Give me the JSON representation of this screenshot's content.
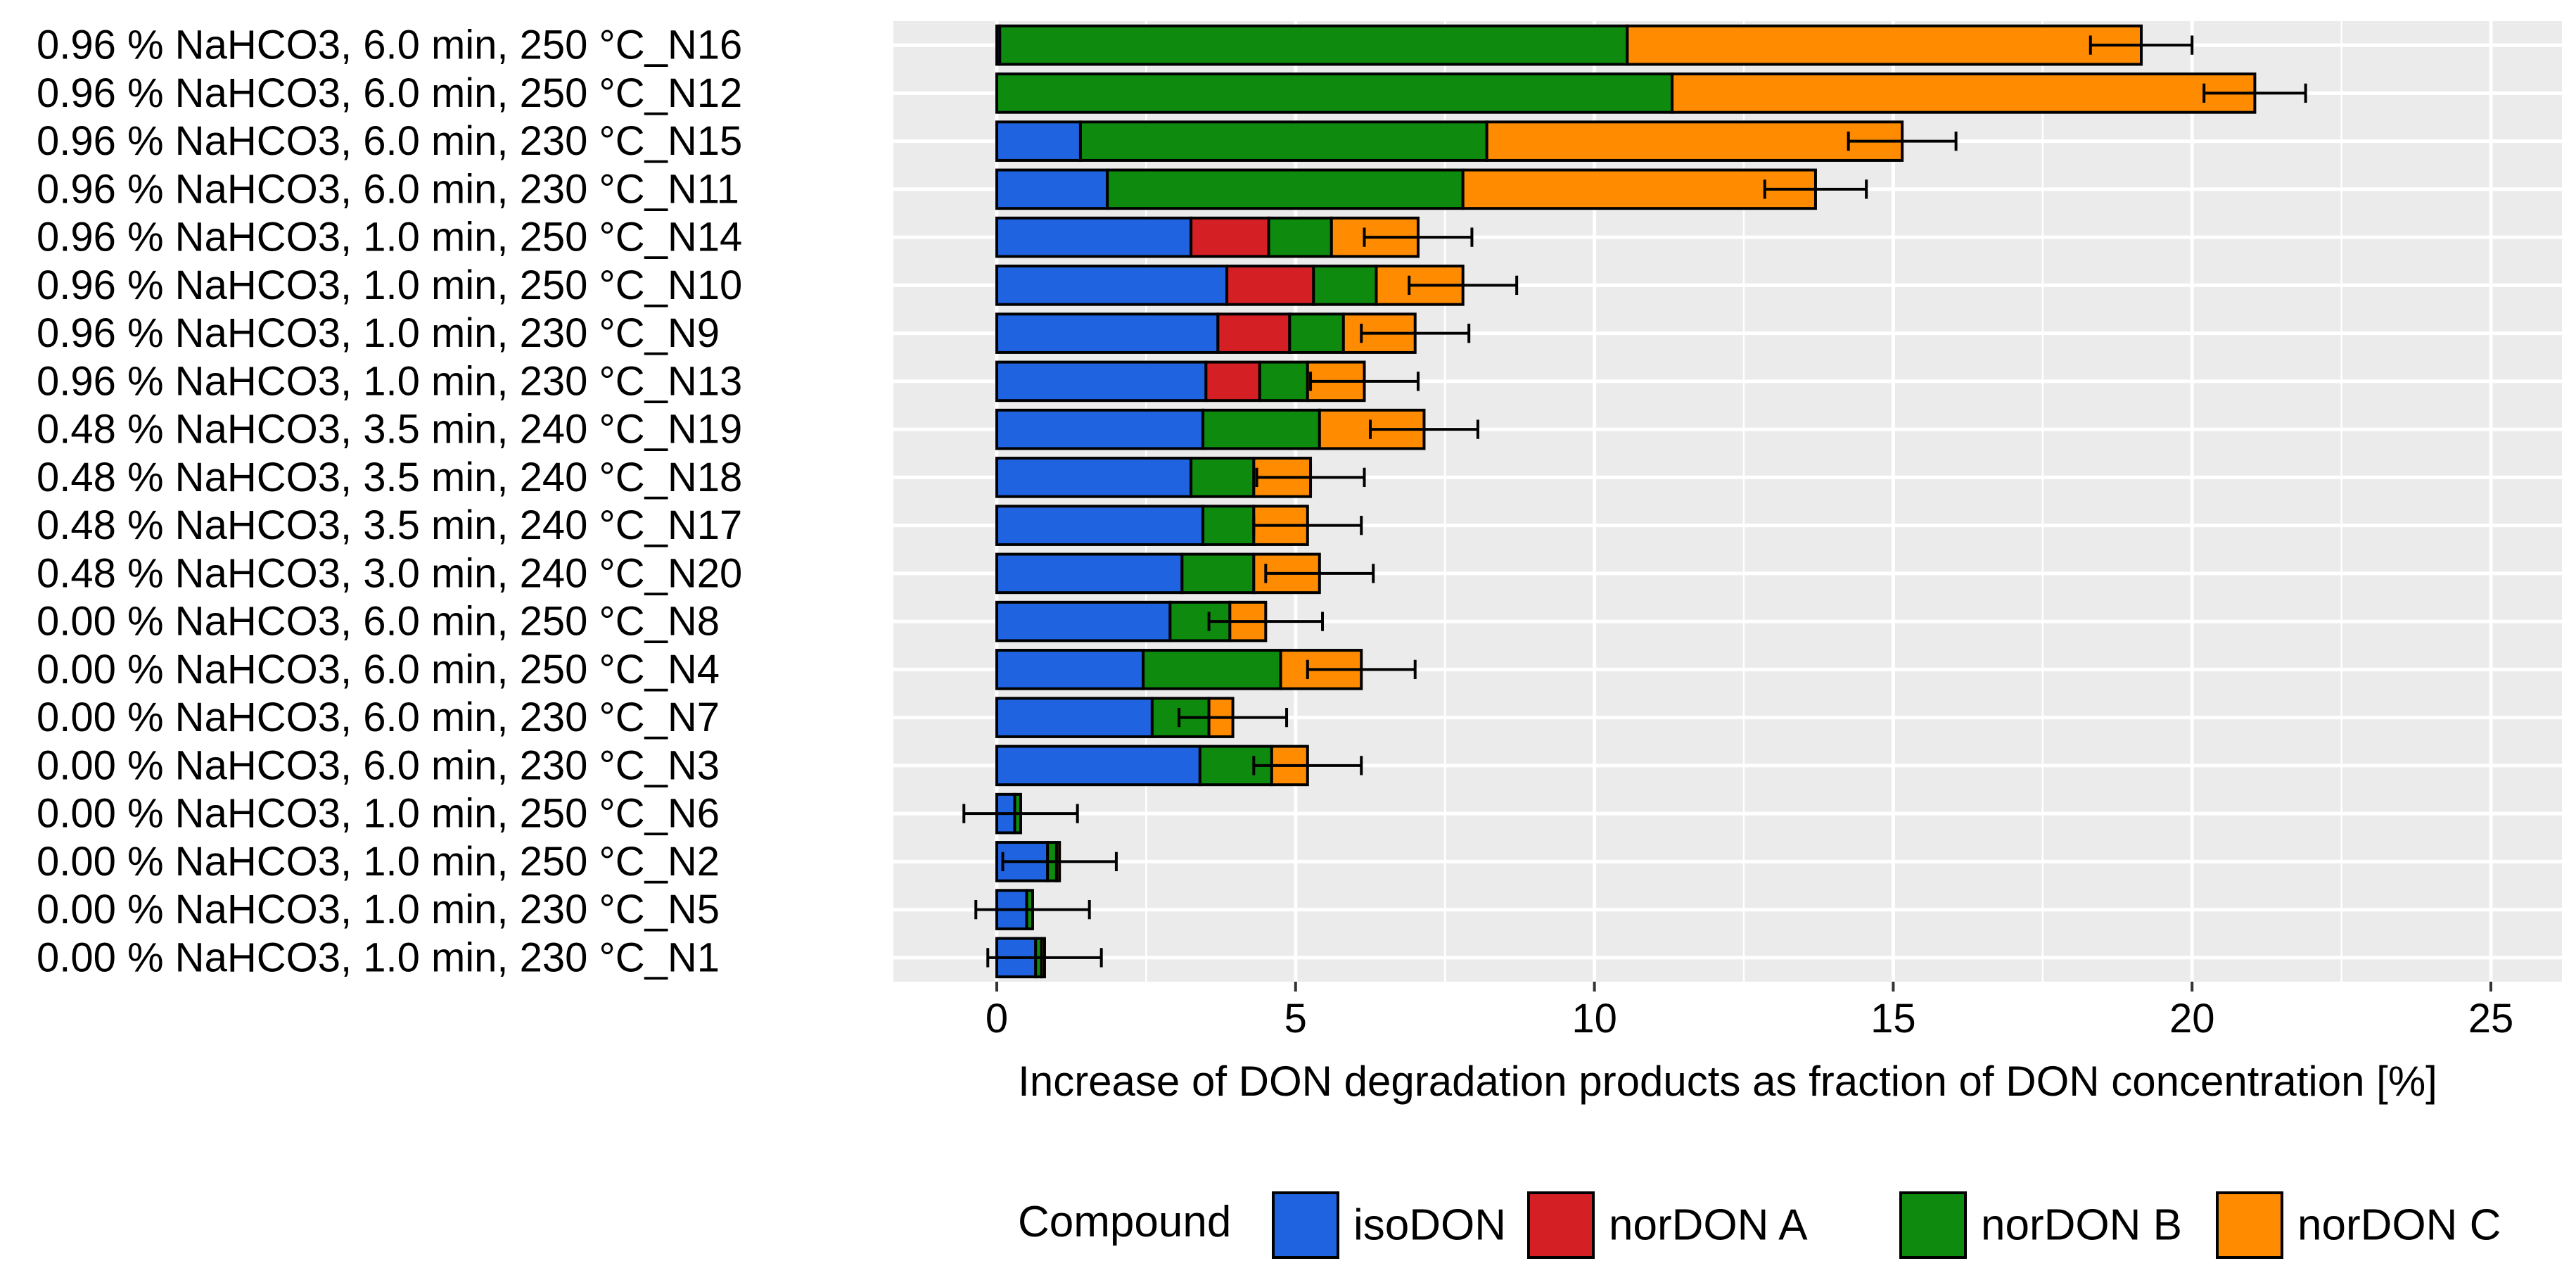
{
  "chart_data": {
    "type": "bar",
    "orientation": "horizontal",
    "stacked": true,
    "title": "",
    "xlabel": "Increase of DON degradation products as fraction of DON concentration [%]",
    "ylabel": "",
    "xlim": [
      -1.75,
      26.3
    ],
    "xticks": [
      0,
      5,
      10,
      15,
      20,
      25
    ],
    "grid": true,
    "legend_position": "bottom",
    "legend_title": "Compound",
    "colors": {
      "isoDON": "#1F63E0",
      "norDON A": "#D41F24",
      "norDON B": "#0E8B0E",
      "norDON C": "#FF8C00",
      "panel_bg": "#EBEBEB",
      "grid": "#FFFFFF"
    },
    "categories": [
      "0.96 % NaHCO3, 6.0 min, 250 °C_N16",
      "0.96 % NaHCO3, 6.0 min, 250 °C_N12",
      "0.96 % NaHCO3, 6.0 min, 230 °C_N15",
      "0.96 % NaHCO3, 6.0 min, 230 °C_N11",
      "0.96 % NaHCO3, 1.0 min, 250 °C_N14",
      "0.96 % NaHCO3, 1.0 min, 250 °C_N10",
      "0.96 % NaHCO3, 1.0 min, 230 °C_N9",
      "0.96 % NaHCO3, 1.0 min, 230 °C_N13",
      "0.48 % NaHCO3, 3.5 min, 240 °C_N19",
      "0.48 % NaHCO3, 3.5 min, 240 °C_N18",
      "0.48 % NaHCO3, 3.5 min, 240 °C_N17",
      "0.48 % NaHCO3, 3.0 min, 240 °C_N20",
      "0.00 % NaHCO3, 6.0 min, 250 °C_N8",
      "0.00 % NaHCO3, 6.0 min, 250 °C_N4",
      "0.00 % NaHCO3, 6.0 min, 230 °C_N7",
      "0.00 % NaHCO3, 6.0 min, 230 °C_N3",
      "0.00 % NaHCO3, 1.0 min, 250 °C_N6",
      "0.00 % NaHCO3, 1.0 min, 250 °C_N2",
      "0.00 % NaHCO3, 1.0 min, 230 °C_N5",
      "0.00 % NaHCO3, 1.0 min, 230 °C_N1"
    ],
    "series": [
      {
        "name": "isoDON",
        "values": [
          0.05,
          0.0,
          1.4,
          1.85,
          3.25,
          3.85,
          3.7,
          3.5,
          3.45,
          3.25,
          3.45,
          3.1,
          2.9,
          2.45,
          2.6,
          3.4,
          0.3,
          0.85,
          0.5,
          0.65
        ]
      },
      {
        "name": "norDON A",
        "values": [
          0.0,
          0.0,
          0.0,
          0.0,
          1.3,
          1.45,
          1.2,
          0.9,
          0.0,
          0.0,
          0.0,
          0.0,
          0.0,
          0.0,
          0.0,
          0.0,
          0.0,
          0.0,
          0.0,
          0.0
        ]
      },
      {
        "name": "norDON B",
        "values": [
          10.5,
          11.3,
          6.8,
          5.95,
          1.05,
          1.05,
          0.9,
          0.8,
          1.95,
          1.05,
          0.85,
          1.2,
          1.0,
          2.3,
          0.95,
          1.2,
          0.1,
          0.15,
          0.1,
          0.1
        ]
      },
      {
        "name": "norDON C",
        "values": [
          8.6,
          9.75,
          6.95,
          5.9,
          1.45,
          1.45,
          1.2,
          0.95,
          1.75,
          0.95,
          0.9,
          1.1,
          0.6,
          1.35,
          0.4,
          0.6,
          0.0,
          0.05,
          0.0,
          0.05
        ]
      }
    ],
    "error": [
      0.85,
      0.85,
      0.9,
      0.85,
      0.9,
      0.9,
      0.9,
      0.9,
      0.9,
      0.9,
      0.9,
      0.9,
      0.95,
      0.9,
      0.9,
      0.9,
      0.95,
      0.95,
      0.95,
      0.95
    ]
  }
}
